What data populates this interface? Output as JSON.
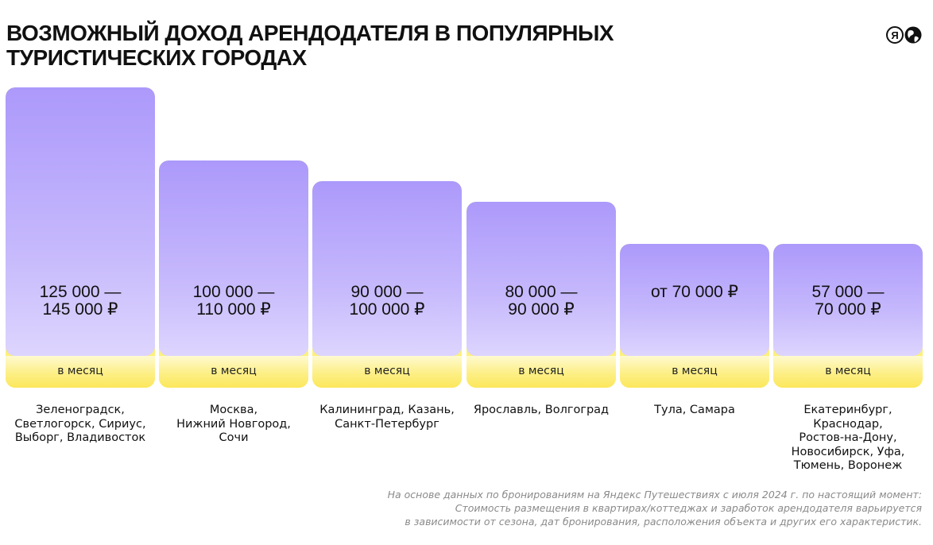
{
  "header": {
    "title_lines": [
      "Возможный доход арендодателя в популярных",
      "туристических городах"
    ]
  },
  "logo": {
    "name": "yandex-travel-logo",
    "letter": "Я"
  },
  "chart_data": {
    "type": "bar",
    "title": "Возможный доход арендодателя в популярных туристических городах",
    "unit": "в месяц",
    "currency": "₽",
    "bars": [
      {
        "label_lines": [
          "125 000 —",
          "145 000 ₽"
        ],
        "min": 125000,
        "max": 145000,
        "cities": [
          "Зеленоградск,",
          "Светлогорск, Сириус,",
          "Выборг, Владивосток"
        ]
      },
      {
        "label_lines": [
          "100 000 —",
          "110 000 ₽"
        ],
        "min": 100000,
        "max": 110000,
        "cities": [
          "Москва,",
          "Нижний Новгород,",
          "Сочи"
        ]
      },
      {
        "label_lines": [
          "90 000 —",
          "100 000 ₽"
        ],
        "min": 90000,
        "max": 100000,
        "cities": [
          "Калининград, Казань,",
          "Санкт-Петербург"
        ]
      },
      {
        "label_lines": [
          "80 000 —",
          "90 000 ₽"
        ],
        "min": 80000,
        "max": 90000,
        "cities": [
          "Ярославль, Волгоград"
        ]
      },
      {
        "label_lines": [
          "от 70 000 ₽"
        ],
        "min": 70000,
        "max": 70000,
        "cities": [
          "Тула, Самара"
        ]
      },
      {
        "label_lines": [
          "57 000 —",
          "70 000 ₽"
        ],
        "min": 57000,
        "max": 70000,
        "cities": [
          "Екатеринбург,",
          "Краснодар,",
          "Ростов-на-Дону,",
          "Новосибирск, Уфа,",
          "Тюмень, Воронеж"
        ]
      }
    ]
  },
  "footnote": {
    "lines": [
      "На основе данных по бронированиям на Яндекс Путешествиях с июля 2024 г. по настоящий момент:",
      "Стоимость размещения в квартирах/коттеджах и заработок арендодателя варьируется",
      "в зависимости от сезона, дат бронирования, расположения объекта и других его характеристик."
    ]
  },
  "colors": {
    "bar_top": "#ac99fb",
    "bar_bottom": "#ddd5fe",
    "band": "#fce75b",
    "text": "#111111",
    "note": "#8a8a8a"
  }
}
